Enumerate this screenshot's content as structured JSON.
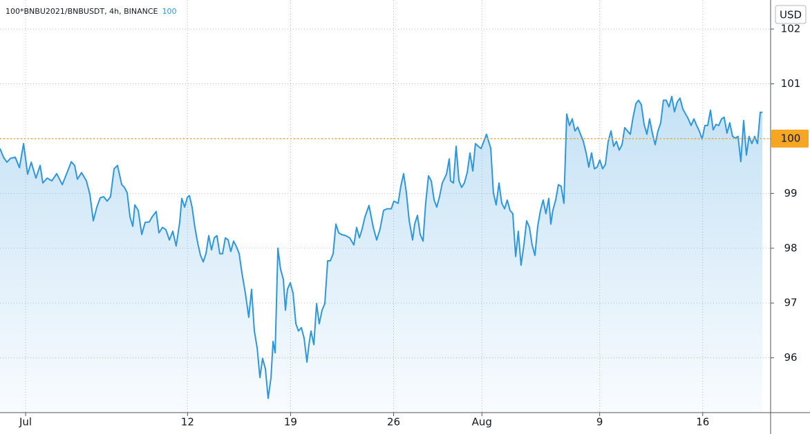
{
  "chart_data": {
    "type": "area",
    "title": "100*BNBU2021/BNBUSDT, 4h, BINANCE",
    "last_value": {
      "value": 100,
      "label": "100"
    },
    "y_unit": "USD",
    "color": "#2e96dc",
    "price_line_color": "#f5a623",
    "grid": true,
    "xlim": [
      -1.74,
      50.05
    ],
    "xticks": [
      {
        "value": 0,
        "label": "Jul"
      },
      {
        "value": 11,
        "label": "12"
      },
      {
        "value": 18,
        "label": "19"
      },
      {
        "value": 25,
        "label": "26"
      },
      {
        "value": 31,
        "label": "Aug"
      },
      {
        "value": 39,
        "label": "9"
      },
      {
        "value": 46,
        "label": "16"
      }
    ],
    "ylim": [
      95.0,
      102.53
    ],
    "yticks": [
      96,
      97,
      98,
      99,
      100,
      101,
      102
    ],
    "x": [
      -1.74,
      -1.5,
      -1.27,
      -1.03,
      -0.7,
      -0.42,
      -0.14,
      0.14,
      0.38,
      0.7,
      0.99,
      1.17,
      1.46,
      1.78,
      2.11,
      2.49,
      2.86,
      3.1,
      3.33,
      3.52,
      3.8,
      4.13,
      4.37,
      4.6,
      4.84,
      5.07,
      5.31,
      5.54,
      5.77,
      6.01,
      6.24,
      6.53,
      6.71,
      6.9,
      7.09,
      7.28,
      7.42,
      7.65,
      7.89,
      8.12,
      8.4,
      8.59,
      8.87,
      9.06,
      9.3,
      9.53,
      9.77,
      10.0,
      10.23,
      10.47,
      10.61,
      10.8,
      10.99,
      11.13,
      11.31,
      11.5,
      11.69,
      11.88,
      12.07,
      12.25,
      12.44,
      12.63,
      12.82,
      13.0,
      13.19,
      13.38,
      13.57,
      13.76,
      13.94,
      14.13,
      14.32,
      14.51,
      14.69,
      14.93,
      15.16,
      15.35,
      15.54,
      15.73,
      15.92,
      16.1,
      16.29,
      16.48,
      16.67,
      16.81,
      16.95,
      17.14,
      17.32,
      17.51,
      17.65,
      17.79,
      17.98,
      18.17,
      18.36,
      18.54,
      18.73,
      18.92,
      19.11,
      19.25,
      19.39,
      19.58,
      19.77,
      19.95,
      20.14,
      20.33,
      20.52,
      20.7,
      20.89,
      21.08,
      21.27,
      21.46,
      21.74,
      22.02,
      22.3,
      22.49,
      22.68,
      22.86,
      23.05,
      23.33,
      23.62,
      23.85,
      24.08,
      24.32,
      24.55,
      24.84,
      25.02,
      25.31,
      25.49,
      25.68,
      25.87,
      26.06,
      26.29,
      26.43,
      26.62,
      26.81,
      27.0,
      27.18,
      27.37,
      27.56,
      27.75,
      27.93,
      28.12,
      28.31,
      28.59,
      28.78,
      28.87,
      29.06,
      29.25,
      29.44,
      29.62,
      29.81,
      30.0,
      30.19,
      30.38,
      30.56,
      30.75,
      30.94,
      31.13,
      31.31,
      31.6,
      31.78,
      31.97,
      32.16,
      32.35,
      32.54,
      32.72,
      32.91,
      33.1,
      33.29,
      33.47,
      33.66,
      33.85,
      34.04,
      34.23,
      34.41,
      34.6,
      34.79,
      34.98,
      35.16,
      35.35,
      35.54,
      35.68,
      35.82,
      36.01,
      36.2,
      36.38,
      36.57,
      36.76,
      36.95,
      37.14,
      37.32,
      37.51,
      37.7,
      37.89,
      38.08,
      38.26,
      38.45,
      38.64,
      38.83,
      39.01,
      39.2,
      39.39,
      39.58,
      39.77,
      39.95,
      40.14,
      40.33,
      40.52,
      40.7,
      40.89,
      41.08,
      41.27,
      41.46,
      41.64,
      41.83,
      42.02,
      42.21,
      42.39,
      42.58,
      42.77,
      42.96,
      43.15,
      43.33,
      43.52,
      43.71,
      43.9,
      44.08,
      44.27,
      44.46,
      44.65,
      44.84,
      45.02,
      45.21,
      45.4,
      45.59,
      45.77,
      45.96,
      46.15,
      46.34,
      46.53,
      46.71,
      46.9,
      47.09,
      47.28,
      47.46,
      47.65,
      47.84,
      48.03,
      48.22,
      48.4,
      48.59,
      48.78,
      48.97,
      49.15,
      49.34,
      49.53,
      49.72,
      49.91,
      50.05
    ],
    "values": [
      99.82,
      99.66,
      99.57,
      99.64,
      99.66,
      99.47,
      99.91,
      99.35,
      99.57,
      99.28,
      99.51,
      99.19,
      99.28,
      99.23,
      99.36,
      99.16,
      99.41,
      99.58,
      99.51,
      99.26,
      99.38,
      99.23,
      98.98,
      98.5,
      98.75,
      98.92,
      98.94,
      98.86,
      98.94,
      99.45,
      99.51,
      99.16,
      99.11,
      99.01,
      98.57,
      98.4,
      98.79,
      98.69,
      98.25,
      98.47,
      98.48,
      98.57,
      98.67,
      98.28,
      98.38,
      98.34,
      98.15,
      98.31,
      98.04,
      98.47,
      98.91,
      98.75,
      98.93,
      98.96,
      98.75,
      98.38,
      98.1,
      97.87,
      97.75,
      97.9,
      98.23,
      97.97,
      98.19,
      98.23,
      97.9,
      97.9,
      98.19,
      98.15,
      97.94,
      98.13,
      98.03,
      97.9,
      97.56,
      97.18,
      96.74,
      97.25,
      96.49,
      96.18,
      95.64,
      95.99,
      95.8,
      95.26,
      95.64,
      96.3,
      96.09,
      98.0,
      97.62,
      97.43,
      96.87,
      97.25,
      97.37,
      97.18,
      96.62,
      96.49,
      96.55,
      96.36,
      95.92,
      96.24,
      96.49,
      96.24,
      96.99,
      96.62,
      96.87,
      96.99,
      97.77,
      97.77,
      97.9,
      98.44,
      98.28,
      98.25,
      98.23,
      98.19,
      98.06,
      98.38,
      98.19,
      98.35,
      98.57,
      98.78,
      98.38,
      98.15,
      98.35,
      98.69,
      98.72,
      98.72,
      98.86,
      98.82,
      99.13,
      99.36,
      99.01,
      98.5,
      98.15,
      98.44,
      98.6,
      98.25,
      98.13,
      98.82,
      99.32,
      99.23,
      98.88,
      98.75,
      98.94,
      99.19,
      99.35,
      99.63,
      99.23,
      99.19,
      99.86,
      99.23,
      99.11,
      99.19,
      99.38,
      99.74,
      99.41,
      99.91,
      99.86,
      99.82,
      99.95,
      100.08,
      99.82,
      99.01,
      98.79,
      99.19,
      98.82,
      98.72,
      98.88,
      98.69,
      98.63,
      97.85,
      98.31,
      97.69,
      98.06,
      98.5,
      98.38,
      98.06,
      97.87,
      98.4,
      98.69,
      98.88,
      98.63,
      98.91,
      98.44,
      98.69,
      98.88,
      99.16,
      99.13,
      98.82,
      100.45,
      100.24,
      100.36,
      100.14,
      100.21,
      100.08,
      99.95,
      99.74,
      99.48,
      99.74,
      99.45,
      99.48,
      99.61,
      99.45,
      99.53,
      99.95,
      100.14,
      99.86,
      99.95,
      99.79,
      99.89,
      100.2,
      100.14,
      100.08,
      100.39,
      100.64,
      100.7,
      100.62,
      100.26,
      100.08,
      100.36,
      100.1,
      99.89,
      100.14,
      100.29,
      100.7,
      100.7,
      100.58,
      100.77,
      100.49,
      100.67,
      100.74,
      100.54,
      100.45,
      100.36,
      100.24,
      100.36,
      100.24,
      100.14,
      99.99,
      100.24,
      100.24,
      100.52,
      100.16,
      100.26,
      100.24,
      100.36,
      100.39,
      100.1,
      100.29,
      100.04,
      100.01,
      100.04,
      99.58,
      100.33,
      99.7,
      100.04,
      99.91,
      100.04,
      99.91,
      100.48,
      100.48
    ]
  }
}
